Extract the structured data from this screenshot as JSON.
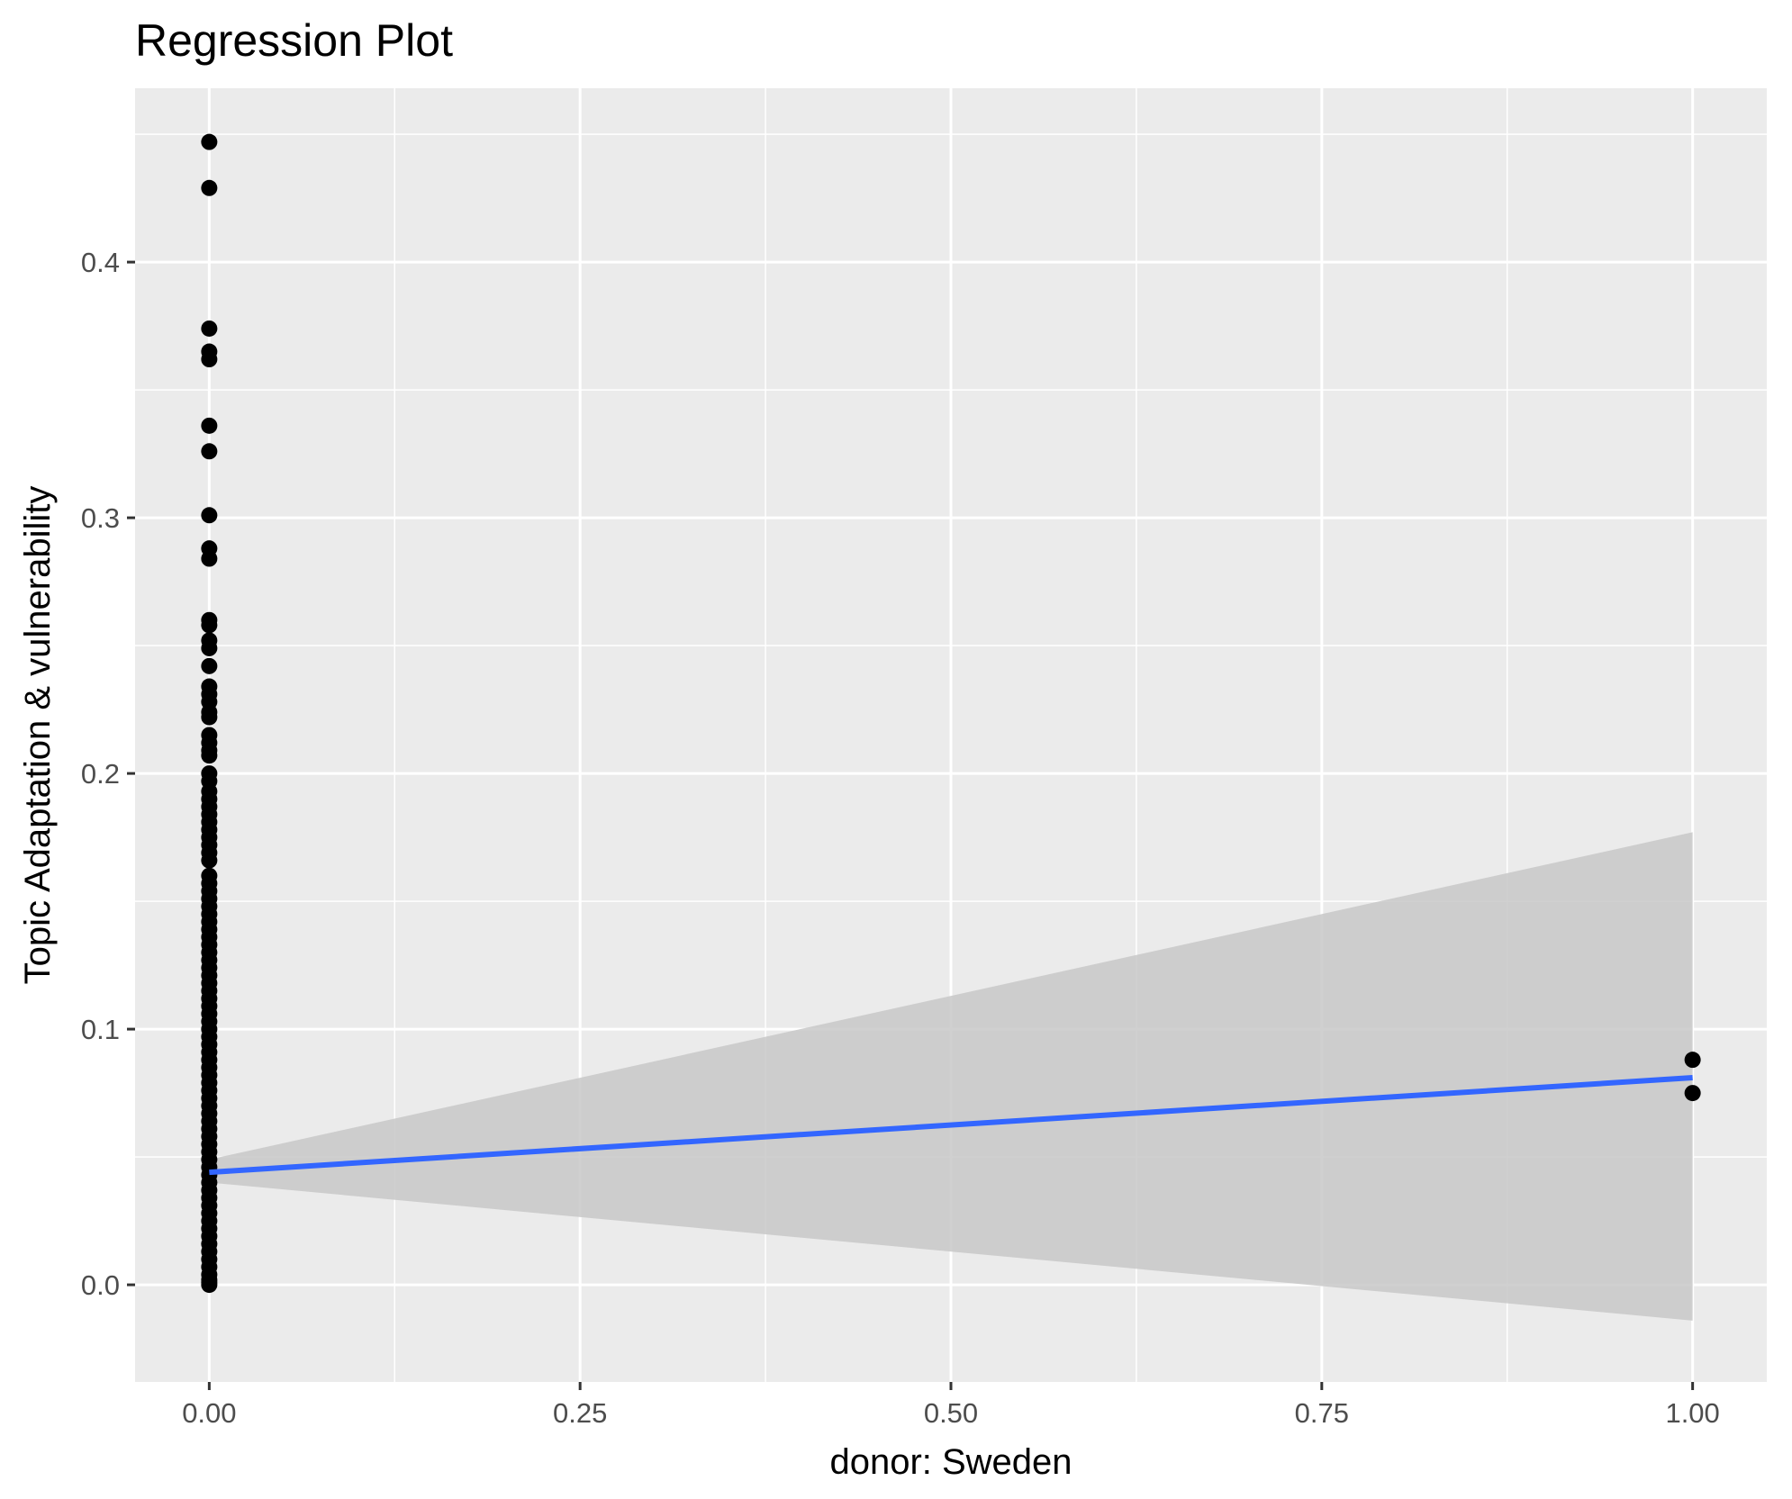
{
  "chart_data": {
    "type": "scatter",
    "title": "Regression Plot",
    "xlabel": "donor: Sweden",
    "ylabel": "Topic Adaptation & vulnerability",
    "xlim": [
      -0.05,
      1.05
    ],
    "ylim": [
      -0.038,
      0.468
    ],
    "x_ticks": [
      0,
      0.25,
      0.5,
      0.75,
      1
    ],
    "x_tick_labels": [
      "0.00",
      "0.25",
      "0.50",
      "0.75",
      "1.00"
    ],
    "y_ticks": [
      0,
      0.1,
      0.2,
      0.3,
      0.4
    ],
    "y_tick_labels": [
      "0.0",
      "0.1",
      "0.2",
      "0.3",
      "0.4"
    ],
    "grid": true,
    "colors": {
      "panel": "#ebebeb",
      "grid": "#ffffff",
      "points": "#000000",
      "fit_line": "#3366ff",
      "ribbon": "#c8c8c8"
    },
    "points": {
      "x0_y": [
        0.447,
        0.429,
        0.374,
        0.365,
        0.362,
        0.336,
        0.326,
        0.301,
        0.288,
        0.284,
        0.26,
        0.258,
        0.252,
        0.249,
        0.242,
        0.234,
        0.231,
        0.228,
        0.224,
        0.222,
        0.215,
        0.212,
        0.209,
        0.207,
        0.2,
        0.197,
        0.193,
        0.19,
        0.187,
        0.184,
        0.181,
        0.178,
        0.175,
        0.172,
        0.169,
        0.166,
        0.16,
        0.157,
        0.154,
        0.151,
        0.148,
        0.145,
        0.142,
        0.139,
        0.136,
        0.133,
        0.13,
        0.127,
        0.124,
        0.121,
        0.118,
        0.115,
        0.112,
        0.109,
        0.106,
        0.103,
        0.1,
        0.097,
        0.094,
        0.091,
        0.088,
        0.085,
        0.082,
        0.079,
        0.076,
        0.073,
        0.07,
        0.067,
        0.064,
        0.061,
        0.058,
        0.055,
        0.052,
        0.049,
        0.046,
        0.043,
        0.04,
        0.037,
        0.034,
        0.031,
        0.028,
        0.025,
        0.022,
        0.019,
        0.016,
        0.013,
        0.01,
        0.007,
        0.004,
        0.002,
        0.001,
        0.0
      ],
      "x1_y": [
        0.088,
        0.075
      ]
    },
    "fit": {
      "x": [
        0,
        1
      ],
      "y": [
        0.044,
        0.081
      ],
      "ci_lower": [
        0.04,
        -0.014
      ],
      "ci_upper": [
        0.049,
        0.177
      ]
    }
  }
}
